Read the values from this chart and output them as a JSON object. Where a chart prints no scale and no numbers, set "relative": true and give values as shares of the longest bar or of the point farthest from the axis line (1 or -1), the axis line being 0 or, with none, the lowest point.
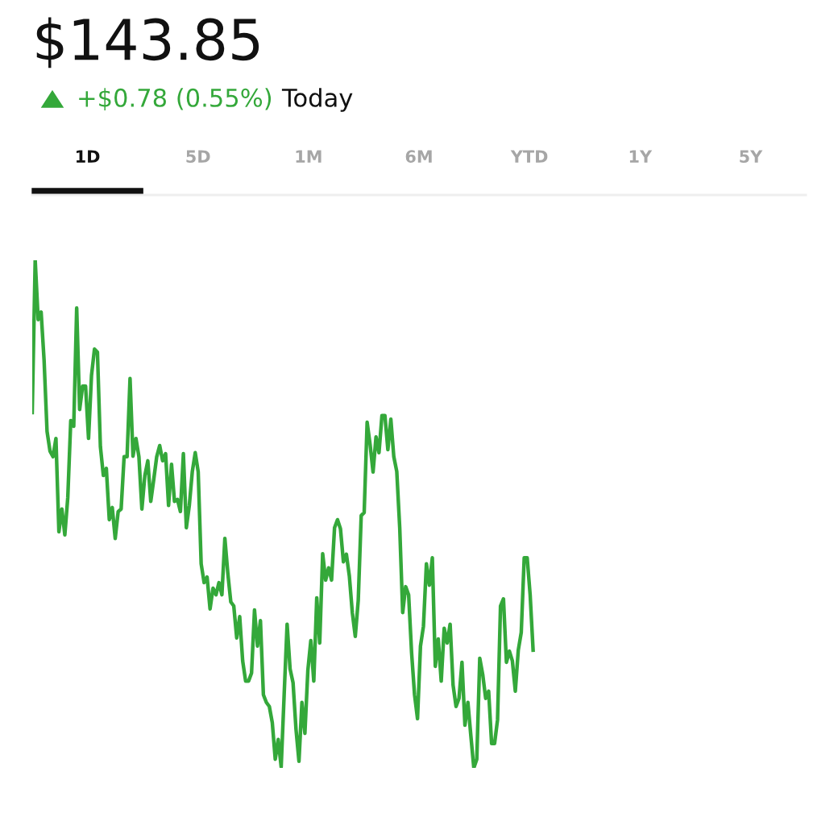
{
  "chart_data": {
    "type": "line",
    "title": "$143.85",
    "subtitle": "+$0.78 (0.55%)",
    "annotations": [
      "Today",
      "1D",
      "5D",
      "1M",
      "6M",
      "YTD",
      "1Y",
      "5Y"
    ],
    "relative": true,
    "marker": "none",
    "line_style": "solid",
    "categories": [
      null,
      null,
      null,
      null,
      null,
      null,
      null,
      null,
      null,
      null,
      null,
      null,
      null,
      null,
      null,
      null,
      null,
      null,
      null,
      null,
      null,
      null,
      null,
      null,
      null,
      null,
      null,
      null,
      null,
      null,
      null,
      null,
      null,
      null,
      null,
      null,
      null,
      null,
      null,
      null,
      null,
      null,
      null,
      null,
      null,
      null,
      null,
      null,
      null,
      null,
      null,
      null,
      null,
      null,
      null,
      null,
      null,
      null,
      null,
      null,
      null,
      null,
      null,
      null,
      null,
      null,
      null,
      null,
      null,
      null,
      null,
      null,
      null,
      null,
      null,
      null,
      null,
      null,
      null,
      null,
      null,
      null,
      null,
      null,
      null,
      null,
      null,
      null,
      null,
      null,
      null,
      null,
      null,
      null,
      null,
      null,
      null,
      null,
      null,
      null,
      null,
      null,
      null,
      null,
      null,
      null,
      null,
      null,
      null,
      null,
      null,
      null,
      null,
      null,
      null,
      null,
      null,
      null,
      null,
      null,
      null,
      null,
      null,
      null,
      null,
      null,
      null,
      null,
      null,
      null,
      null,
      null,
      null,
      null,
      null,
      null,
      null,
      null,
      null,
      null,
      null,
      null,
      null,
      null,
      null,
      null,
      null,
      null,
      null,
      null,
      null,
      null,
      null,
      null,
      null,
      null,
      null,
      null,
      null,
      null,
      null,
      null,
      null,
      null,
      null,
      null,
      null,
      null,
      null,
      null,
      null,
      null,
      null,
      null,
      null,
      null,
      null,
      null,
      null,
      null,
      null,
      null,
      null,
      null,
      null,
      null,
      null,
      null,
      null,
      null,
      null,
      null,
      null,
      null,
      null,
      null,
      null,
      null,
      null,
      null,
      null,
      null,
      null,
      null,
      null,
      null,
      null,
      null,
      null,
      null,
      null,
      null,
      null,
      null,
      null,
      null,
      null,
      null,
      null,
      null,
      null,
      null,
      null,
      null,
      null,
      null,
      null,
      null,
      null,
      null,
      null,
      null,
      null,
      null,
      null,
      null,
      null,
      null,
      null,
      null,
      null,
      null,
      null,
      null,
      null,
      null,
      null,
      null,
      null,
      null,
      null,
      null,
      null,
      null,
      null,
      null,
      null,
      null,
      null,
      null,
      null,
      null
    ],
    "series": [
      {
        "color": "#34a83a",
        "values": [
          0.7,
          1.0,
          0.883,
          0.898,
          0.803,
          0.663,
          0.624,
          0.613,
          0.649,
          0.465,
          0.51,
          0.459,
          0.533,
          0.684,
          0.673,
          0.906,
          0.706,
          0.752,
          0.752,
          0.649,
          0.773,
          0.825,
          0.819,
          0.633,
          0.576,
          0.59,
          0.489,
          0.513,
          0.452,
          0.505,
          0.51,
          0.613,
          0.613,
          0.767,
          0.614,
          0.649,
          0.613,
          0.51,
          0.576,
          0.605,
          0.525,
          0.568,
          0.613,
          0.635,
          0.605,
          0.619,
          0.517,
          0.598,
          0.525,
          0.529,
          0.505,
          0.619,
          0.473,
          0.517,
          0.583,
          0.621,
          0.583,
          0.402,
          0.365,
          0.376,
          0.313,
          0.354,
          0.341,
          0.365,
          0.341,
          0.452,
          0.383,
          0.327,
          0.319,
          0.256,
          0.298,
          0.211,
          0.171,
          0.171,
          0.187,
          0.311,
          0.24,
          0.29,
          0.144,
          0.129,
          0.121,
          0.089,
          0.017,
          0.056,
          0.002,
          0.144,
          0.283,
          0.195,
          0.168,
          0.076,
          0.013,
          0.129,
          0.068,
          0.192,
          0.251,
          0.171,
          0.335,
          0.246,
          0.422,
          0.37,
          0.394,
          0.37,
          0.473,
          0.489,
          0.471,
          0.406,
          0.421,
          0.378,
          0.306,
          0.259,
          0.33,
          0.497,
          0.503,
          0.681,
          0.637,
          0.583,
          0.652,
          0.621,
          0.694,
          0.694,
          0.627,
          0.687,
          0.613,
          0.584,
          0.473,
          0.306,
          0.357,
          0.341,
          0.227,
          0.144,
          0.097,
          0.24,
          0.279,
          0.402,
          0.36,
          0.414,
          0.2,
          0.254,
          0.171,
          0.275,
          0.246,
          0.283,
          0.163,
          0.121,
          0.137,
          0.208,
          0.084,
          0.129,
          0.063,
          0.0,
          0.017,
          0.216,
          0.184,
          0.137,
          0.151,
          0.048,
          0.048,
          0.095,
          0.319,
          0.333,
          0.208,
          0.23,
          0.211,
          0.151,
          0.232,
          0.267,
          0.414,
          0.414,
          0.341,
          0.232,
          null,
          null,
          null,
          null,
          null,
          null,
          null,
          null,
          null,
          null,
          null,
          null,
          null,
          null,
          null,
          null,
          null,
          null,
          null,
          null,
          null,
          null,
          null,
          null,
          null,
          null,
          null,
          null,
          null,
          null,
          null,
          null,
          null,
          null,
          null,
          null,
          null,
          null,
          null,
          null,
          null,
          null,
          null,
          null,
          null,
          null,
          null,
          null,
          null,
          null,
          null,
          null,
          null,
          null,
          null,
          null,
          null,
          null,
          null,
          null,
          null,
          null,
          null,
          null,
          null,
          null,
          null,
          null,
          null,
          null,
          null,
          null,
          null,
          null,
          null,
          null,
          null,
          null,
          null,
          null,
          null,
          null,
          null,
          null,
          null,
          null,
          null,
          null,
          null,
          null,
          null,
          null
        ]
      }
    ]
  }
}
